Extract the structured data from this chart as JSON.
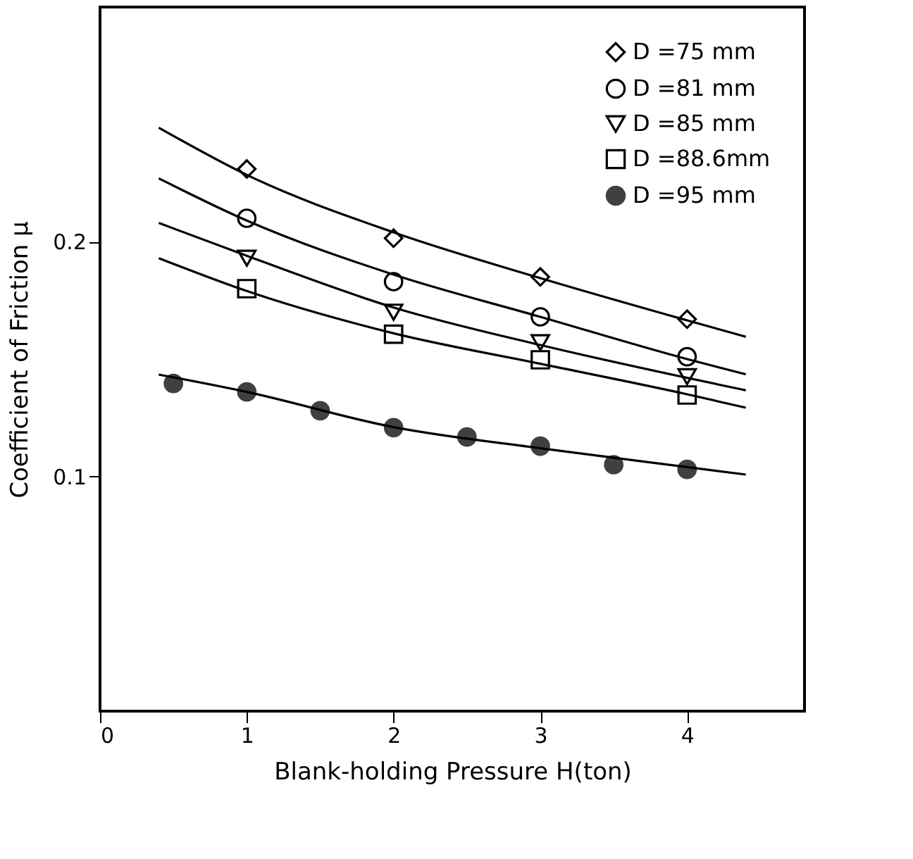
{
  "chart_data": {
    "type": "scatter",
    "xlabel": "Blank-holding Pressure H(ton)",
    "ylabel": "Coefficient of Friction μ",
    "xlim": [
      0,
      4.8
    ],
    "ylim": [
      0,
      0.3
    ],
    "xticks": [
      0,
      1,
      2,
      3,
      4
    ],
    "yticks": [
      0.1,
      0.2
    ],
    "grid": false,
    "legend": "top right",
    "series": [
      {
        "name": "D =75 mm",
        "type": "scatter",
        "marker": "diamond",
        "color": "#000000",
        "x": [
          1,
          2,
          3,
          4
        ],
        "values": [
          0.231,
          0.2015,
          0.185,
          0.167
        ]
      },
      {
        "name": "D =81 mm",
        "type": "scatter",
        "marker": "circle",
        "color": "#000000",
        "x": [
          1,
          2,
          3,
          4
        ],
        "values": [
          0.21,
          0.183,
          0.168,
          0.151
        ]
      },
      {
        "name": "D =85 mm",
        "type": "scatter",
        "marker": "triangle",
        "color": "#000000",
        "x": [
          1,
          2,
          3,
          4
        ],
        "values": [
          0.193,
          0.17,
          0.157,
          0.1425
        ]
      },
      {
        "name": "D =88.6mm",
        "type": "scatter",
        "marker": "square",
        "color": "#000000",
        "x": [
          1,
          2,
          3,
          4
        ],
        "values": [
          0.18,
          0.1606,
          0.1497,
          0.1347
        ]
      },
      {
        "name": "D =95 mm",
        "type": "scatter",
        "marker": "circle",
        "color": "#404040",
        "x": [
          0.5,
          1,
          1.5,
          2,
          2.5,
          3,
          3.5,
          4
        ],
        "values": [
          0.1396,
          0.136,
          0.128,
          0.1208,
          0.1168,
          0.1129,
          0.105,
          0.103
        ]
      },
      {
        "type": "line",
        "color": "#000000",
        "x": [
          0.4,
          1,
          2,
          3,
          4,
          4.4
        ],
        "values": [
          0.2486,
          0.2285,
          0.204,
          0.1845,
          0.1665,
          0.1595
        ]
      },
      {
        "type": "line",
        "color": "#000000",
        "x": [
          0.4,
          1,
          2,
          3,
          4,
          4.4
        ],
        "values": [
          0.227,
          0.209,
          0.186,
          0.168,
          0.15,
          0.1435
        ]
      },
      {
        "type": "line",
        "color": "#000000",
        "x": [
          0.4,
          1,
          2,
          3,
          4,
          4.4
        ],
        "values": [
          0.208,
          0.194,
          0.172,
          0.156,
          0.142,
          0.1367
        ]
      },
      {
        "type": "line",
        "color": "#000000",
        "x": [
          0.4,
          1,
          2,
          3,
          4,
          4.4
        ],
        "values": [
          0.193,
          0.179,
          0.161,
          0.148,
          0.135,
          0.1293
        ]
      },
      {
        "type": "line",
        "color": "#000000",
        "x": [
          0.4,
          1,
          2,
          3,
          4,
          4.4
        ],
        "values": [
          0.1434,
          0.136,
          0.121,
          0.112,
          0.104,
          0.1008
        ]
      }
    ]
  }
}
